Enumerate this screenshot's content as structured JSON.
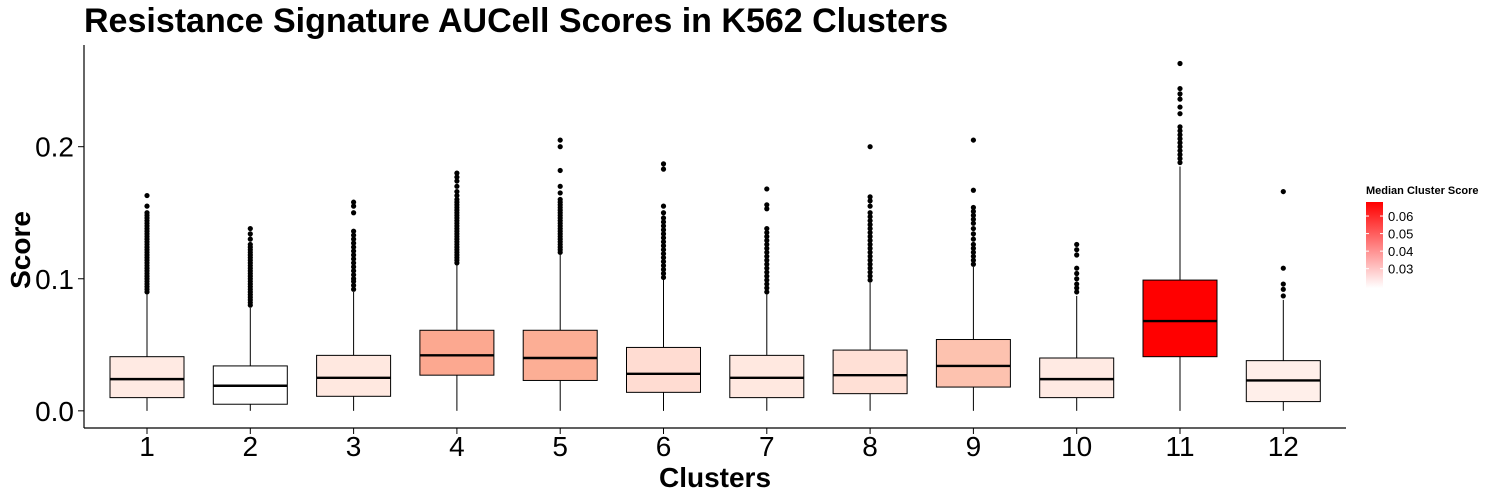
{
  "chart_data": {
    "type": "boxplot",
    "title": "Resistance Signature AUCell Scores in K562 Clusters",
    "xlabel": "Clusters",
    "ylabel": "Score",
    "ylim": [
      -0.013,
      0.277
    ],
    "yticks": [
      0.0,
      0.1,
      0.2
    ],
    "ytick_labels": [
      "0.0",
      "0.1",
      "0.2"
    ],
    "categories": [
      "1",
      "2",
      "3",
      "4",
      "5",
      "6",
      "7",
      "8",
      "9",
      "10",
      "11",
      "12"
    ],
    "boxes": [
      {
        "cluster": "1",
        "lower_whisker": 0.0,
        "q1": 0.01,
        "median": 0.024,
        "q3": 0.041,
        "upper_whisker": 0.088,
        "fill": "#FFEAE3",
        "outliers": [
          0.09,
          0.092,
          0.094,
          0.096,
          0.098,
          0.1,
          0.102,
          0.104,
          0.106,
          0.108,
          0.11,
          0.112,
          0.114,
          0.116,
          0.118,
          0.12,
          0.122,
          0.124,
          0.126,
          0.128,
          0.13,
          0.132,
          0.134,
          0.136,
          0.138,
          0.14,
          0.142,
          0.144,
          0.146,
          0.148,
          0.15,
          0.155,
          0.163
        ]
      },
      {
        "cluster": "2",
        "lower_whisker": 0.0,
        "q1": 0.005,
        "median": 0.019,
        "q3": 0.034,
        "upper_whisker": 0.078,
        "fill": "#FFFFFF",
        "outliers": [
          0.08,
          0.082,
          0.084,
          0.086,
          0.088,
          0.09,
          0.092,
          0.094,
          0.096,
          0.098,
          0.1,
          0.102,
          0.104,
          0.106,
          0.108,
          0.11,
          0.112,
          0.114,
          0.116,
          0.118,
          0.12,
          0.122,
          0.124,
          0.126,
          0.13,
          0.134,
          0.138
        ]
      },
      {
        "cluster": "3",
        "lower_whisker": 0.0,
        "q1": 0.011,
        "median": 0.025,
        "q3": 0.042,
        "upper_whisker": 0.09,
        "fill": "#FFE8E0",
        "outliers": [
          0.092,
          0.095,
          0.098,
          0.1,
          0.103,
          0.106,
          0.109,
          0.112,
          0.115,
          0.118,
          0.121,
          0.124,
          0.127,
          0.13,
          0.133,
          0.136,
          0.15,
          0.155,
          0.158
        ]
      },
      {
        "cluster": "4",
        "lower_whisker": 0.0,
        "q1": 0.027,
        "median": 0.042,
        "q3": 0.061,
        "upper_whisker": 0.111,
        "fill": "#FCA890",
        "outliers": [
          0.112,
          0.114,
          0.116,
          0.118,
          0.12,
          0.122,
          0.124,
          0.126,
          0.128,
          0.13,
          0.132,
          0.134,
          0.136,
          0.138,
          0.14,
          0.142,
          0.144,
          0.146,
          0.148,
          0.15,
          0.152,
          0.154,
          0.156,
          0.158,
          0.16,
          0.163,
          0.166,
          0.17,
          0.174,
          0.177,
          0.18
        ]
      },
      {
        "cluster": "5",
        "lower_whisker": 0.0,
        "q1": 0.023,
        "median": 0.04,
        "q3": 0.061,
        "upper_whisker": 0.118,
        "fill": "#FCAE95",
        "outliers": [
          0.12,
          0.122,
          0.124,
          0.126,
          0.128,
          0.13,
          0.132,
          0.134,
          0.136,
          0.138,
          0.14,
          0.142,
          0.144,
          0.146,
          0.148,
          0.15,
          0.152,
          0.154,
          0.156,
          0.158,
          0.16,
          0.165,
          0.17,
          0.182,
          0.2,
          0.205
        ]
      },
      {
        "cluster": "6",
        "lower_whisker": 0.0,
        "q1": 0.014,
        "median": 0.028,
        "q3": 0.048,
        "upper_whisker": 0.1,
        "fill": "#FFDCD2",
        "outliers": [
          0.101,
          0.104,
          0.107,
          0.11,
          0.113,
          0.116,
          0.119,
          0.122,
          0.125,
          0.128,
          0.131,
          0.134,
          0.137,
          0.14,
          0.143,
          0.146,
          0.15,
          0.155,
          0.183,
          0.187
        ]
      },
      {
        "cluster": "7",
        "lower_whisker": 0.0,
        "q1": 0.01,
        "median": 0.025,
        "q3": 0.042,
        "upper_whisker": 0.088,
        "fill": "#FFE8E0",
        "outliers": [
          0.09,
          0.093,
          0.096,
          0.099,
          0.102,
          0.105,
          0.108,
          0.111,
          0.114,
          0.117,
          0.12,
          0.123,
          0.126,
          0.129,
          0.132,
          0.135,
          0.138,
          0.153,
          0.156,
          0.168
        ]
      },
      {
        "cluster": "8",
        "lower_whisker": 0.0,
        "q1": 0.013,
        "median": 0.027,
        "q3": 0.046,
        "upper_whisker": 0.097,
        "fill": "#FFE0D6",
        "outliers": [
          0.099,
          0.102,
          0.105,
          0.108,
          0.111,
          0.114,
          0.117,
          0.12,
          0.123,
          0.126,
          0.129,
          0.132,
          0.135,
          0.138,
          0.141,
          0.144,
          0.147,
          0.15,
          0.155,
          0.159,
          0.162,
          0.2
        ]
      },
      {
        "cluster": "9",
        "lower_whisker": 0.0,
        "q1": 0.018,
        "median": 0.034,
        "q3": 0.054,
        "upper_whisker": 0.109,
        "fill": "#FDC2AF",
        "outliers": [
          0.111,
          0.114,
          0.117,
          0.12,
          0.123,
          0.126,
          0.13,
          0.134,
          0.138,
          0.142,
          0.145,
          0.148,
          0.151,
          0.154,
          0.167,
          0.205
        ]
      },
      {
        "cluster": "10",
        "lower_whisker": 0.0,
        "q1": 0.01,
        "median": 0.024,
        "q3": 0.04,
        "upper_whisker": 0.087,
        "fill": "#FFEAE3",
        "outliers": [
          0.09,
          0.093,
          0.096,
          0.1,
          0.104,
          0.108,
          0.118,
          0.122,
          0.126
        ]
      },
      {
        "cluster": "11",
        "lower_whisker": 0.0,
        "q1": 0.041,
        "median": 0.068,
        "q3": 0.099,
        "upper_whisker": 0.185,
        "fill": "#FF0000",
        "outliers": [
          0.188,
          0.191,
          0.194,
          0.197,
          0.2,
          0.203,
          0.206,
          0.209,
          0.212,
          0.215,
          0.225,
          0.23,
          0.236,
          0.24,
          0.244,
          0.263
        ]
      },
      {
        "cluster": "12",
        "lower_whisker": 0.0,
        "q1": 0.007,
        "median": 0.023,
        "q3": 0.038,
        "upper_whisker": 0.084,
        "fill": "#FFEFEA",
        "outliers": [
          0.087,
          0.092,
          0.096,
          0.108,
          0.166
        ]
      }
    ],
    "legend": {
      "title": "Median Cluster Score",
      "placement": "right",
      "color_low": "#FFFFFF",
      "color_high": "#FF0000",
      "range": [
        0.019,
        0.068
      ],
      "ticks": [
        0.03,
        0.04,
        0.05,
        0.06
      ],
      "tick_labels": [
        "0.03",
        "0.04",
        "0.05",
        "0.06"
      ]
    },
    "grid": false
  }
}
